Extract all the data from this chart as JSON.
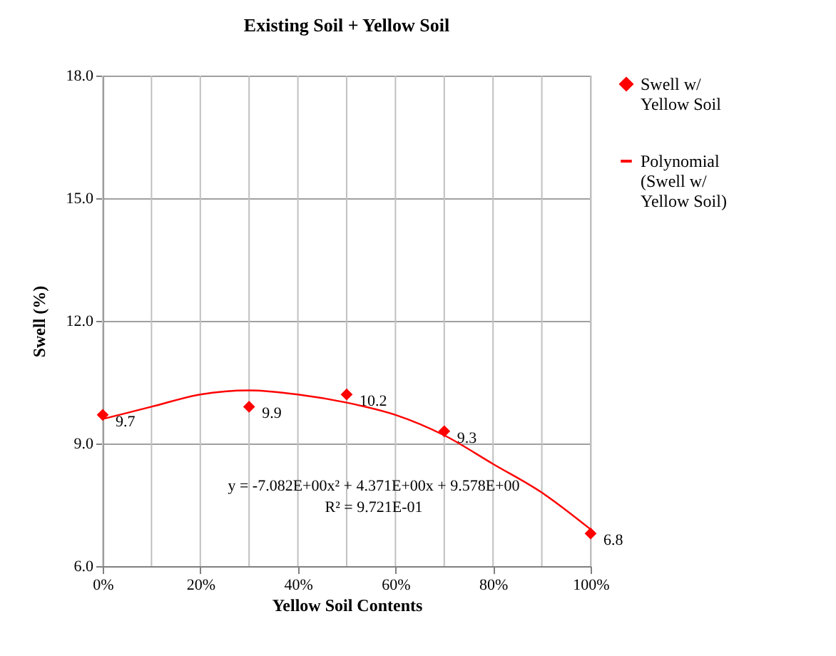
{
  "chart_data": {
    "type": "scatter",
    "title": "Existing Soil + Yellow Soil",
    "xlabel": "Yellow Soil Contents",
    "ylabel": "Swell (%)",
    "xlim": [
      0,
      100
    ],
    "xticks": [
      {
        "value": 0,
        "label": "0%"
      },
      {
        "value": 10,
        "label": null
      },
      {
        "value": 20,
        "label": "20%"
      },
      {
        "value": 30,
        "label": null
      },
      {
        "value": 40,
        "label": "40%"
      },
      {
        "value": 50,
        "label": null
      },
      {
        "value": 60,
        "label": "60%"
      },
      {
        "value": 70,
        "label": null
      },
      {
        "value": 80,
        "label": "80%"
      },
      {
        "value": 90,
        "label": null
      },
      {
        "value": 100,
        "label": "100%"
      }
    ],
    "ylim": [
      6,
      18
    ],
    "yticks": [
      {
        "value": 6,
        "label": "6.0"
      },
      {
        "value": 9,
        "label": "9.0"
      },
      {
        "value": 12,
        "label": "12.0"
      },
      {
        "value": 15,
        "label": "15.0"
      },
      {
        "value": 18,
        "label": "18.0"
      }
    ],
    "series": [
      {
        "name": "Swell w/ Yellow Soil",
        "color": "#ff0000",
        "marker": "diamond",
        "x": [
          0,
          30,
          50,
          70,
          100
        ],
        "values": [
          9.7,
          9.9,
          10.2,
          9.3,
          6.8
        ],
        "data_labels": true
      },
      {
        "name": "Polynomial (Swell w/ Yellow Soil)",
        "type": "line",
        "color": "#ff0000",
        "line_style": "solid",
        "x": [
          0,
          10,
          20,
          30,
          40,
          50,
          60,
          70,
          80,
          90,
          100
        ],
        "values": [
          9.6,
          9.9,
          10.2,
          10.3,
          10.2,
          10.0,
          9.7,
          9.2,
          8.5,
          7.8,
          6.9
        ]
      }
    ],
    "annotations": [
      "y = -7.082E+00x² + 4.371E+00x + 9.578E+00",
      "R² = 9.721E-01"
    ],
    "grid": true,
    "legend": "right"
  }
}
